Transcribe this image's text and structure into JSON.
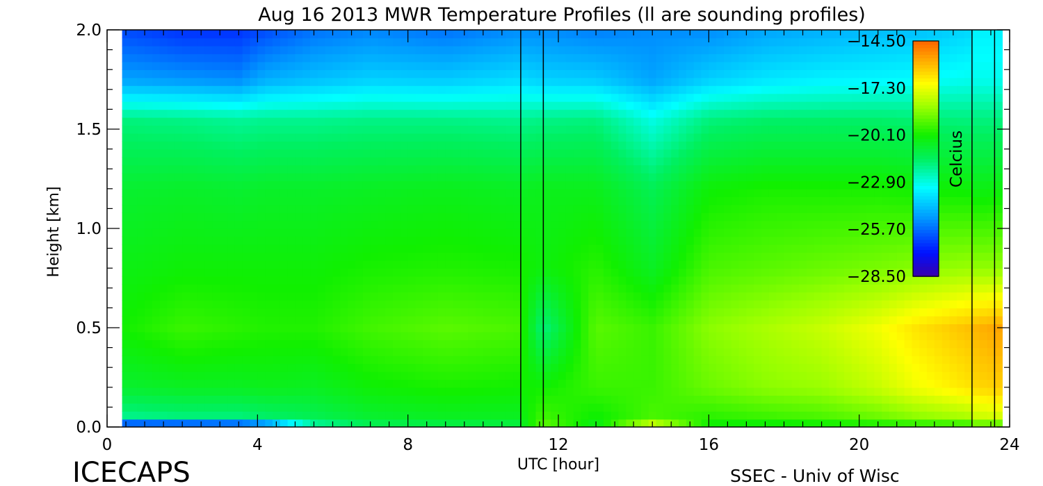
{
  "chart_data": {
    "type": "heatmap",
    "title": "Aug 16 2013 MWR Temperature Profiles (ll are sounding profiles)",
    "xlabel": "UTC [hour]",
    "ylabel": "Height [km]",
    "xlim": [
      0,
      24
    ],
    "ylim": [
      0,
      2
    ],
    "x_ticks": [
      "0",
      "4",
      "8",
      "12",
      "16",
      "20",
      "24"
    ],
    "y_ticks": [
      "0.0",
      "0.5",
      "1.0",
      "1.5",
      "2.0"
    ],
    "colorbar": {
      "label": "Celcius",
      "min": -28.5,
      "max": -14.5,
      "ticks": [
        "-14.50",
        "-17.30",
        "-20.10",
        "-22.90",
        "-25.70",
        "-28.50"
      ]
    },
    "sounding_times_utc": [
      11.0,
      11.6,
      23.0,
      23.6
    ],
    "data_start_utc": 0.4,
    "data_end_utc": 23.8,
    "height_grid_km": [
      0.0,
      0.05,
      0.2,
      0.5,
      0.8,
      1.2,
      1.55,
      1.75,
      2.0
    ],
    "profiles": [
      {
        "time": 0.4,
        "temps": [
          -28.2,
          -22.0,
          -20.8,
          -20.1,
          -20.4,
          -20.8,
          -21.8,
          -24.8,
          -26.2
        ]
      },
      {
        "time": 2.0,
        "temps": [
          -28.2,
          -21.8,
          -20.6,
          -19.6,
          -20.2,
          -20.7,
          -21.9,
          -25.0,
          -26.6
        ]
      },
      {
        "time": 3.5,
        "temps": [
          -28.0,
          -21.8,
          -20.6,
          -19.8,
          -20.2,
          -20.8,
          -22.1,
          -25.2,
          -26.6
        ]
      },
      {
        "time": 4.2,
        "temps": [
          -27.0,
          -21.6,
          -20.5,
          -19.9,
          -20.2,
          -20.7,
          -22.0,
          -24.6,
          -26.2
        ]
      },
      {
        "time": 5.5,
        "temps": [
          -22.5,
          -21.3,
          -20.6,
          -19.9,
          -20.2,
          -20.7,
          -22.0,
          -24.3,
          -25.6
        ]
      },
      {
        "time": 7.0,
        "temps": [
          -21.5,
          -20.8,
          -20.2,
          -19.5,
          -20.0,
          -20.6,
          -21.9,
          -24.0,
          -25.3
        ]
      },
      {
        "time": 9.0,
        "temps": [
          -21.3,
          -20.6,
          -20.0,
          -19.2,
          -19.9,
          -20.5,
          -21.9,
          -24.1,
          -25.6
        ]
      },
      {
        "time": 10.9,
        "temps": [
          -21.2,
          -20.6,
          -20.1,
          -19.4,
          -20.0,
          -20.6,
          -22.0,
          -23.8,
          -25.2
        ]
      },
      {
        "time": 11.6,
        "temps": [
          -19.0,
          -19.5,
          -20.1,
          -21.8,
          -20.3,
          -20.5,
          -21.9,
          -24.0,
          -25.2
        ]
      },
      {
        "time": 13.0,
        "temps": [
          -20.6,
          -20.2,
          -19.6,
          -19.2,
          -19.8,
          -20.5,
          -21.8,
          -24.1,
          -25.4
        ]
      },
      {
        "time": 14.5,
        "temps": [
          -17.0,
          -19.4,
          -19.6,
          -19.6,
          -20.6,
          -21.3,
          -22.9,
          -24.8,
          -25.2
        ]
      },
      {
        "time": 16.0,
        "temps": [
          -20.3,
          -19.8,
          -19.0,
          -18.6,
          -19.4,
          -20.2,
          -21.8,
          -24.0,
          -25.2
        ]
      },
      {
        "time": 17.5,
        "temps": [
          -20.5,
          -19.6,
          -18.6,
          -18.2,
          -19.2,
          -20.0,
          -21.6,
          -23.6,
          -24.8
        ]
      },
      {
        "time": 19.0,
        "temps": [
          -20.4,
          -19.4,
          -18.4,
          -17.8,
          -19.0,
          -20.0,
          -21.6,
          -23.4,
          -24.6
        ]
      },
      {
        "time": 20.5,
        "temps": [
          -20.3,
          -19.0,
          -17.8,
          -17.2,
          -18.8,
          -20.0,
          -21.6,
          -23.3,
          -24.4
        ]
      },
      {
        "time": 21.5,
        "temps": [
          -20.2,
          -18.6,
          -17.2,
          -16.6,
          -18.6,
          -20.1,
          -21.7,
          -23.2,
          -24.3
        ]
      },
      {
        "time": 22.9,
        "temps": [
          -20.1,
          -18.2,
          -16.6,
          -16.0,
          -18.4,
          -20.2,
          -21.8,
          -23.0,
          -23.9
        ]
      },
      {
        "time": 23.1,
        "temps": [
          -19.5,
          -17.8,
          -16.4,
          -15.8,
          -18.5,
          -20.4,
          -21.8,
          -23.0,
          -23.4
        ]
      },
      {
        "time": 23.8,
        "temps": [
          -19.8,
          -17.6,
          -16.2,
          -15.5,
          -18.5,
          -20.3,
          -21.8,
          -23.0,
          -23.4
        ]
      }
    ]
  },
  "brand": {
    "name": "ICECAPS",
    "credit": "SSEC - Univ of Wisc"
  }
}
